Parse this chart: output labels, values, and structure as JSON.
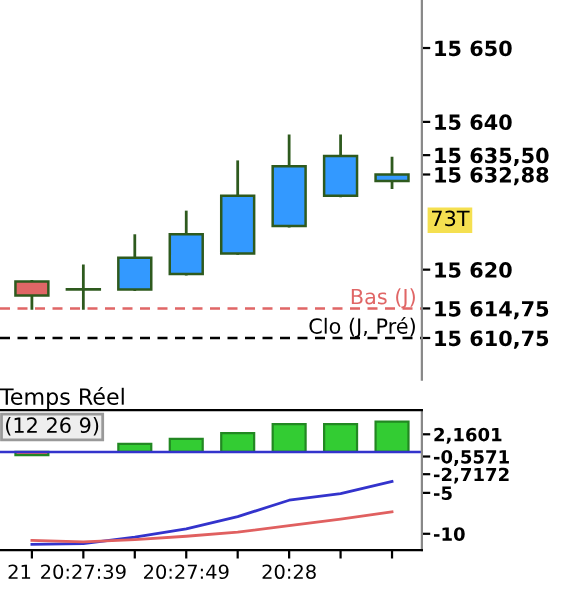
{
  "chart_data": [
    {
      "type": "candlestick",
      "categories": [
        null,
        null,
        null,
        null,
        null,
        null,
        null,
        null
      ],
      "ohlc": [
        [
          15618.4,
          15618.4,
          15614.75,
          15616.5
        ],
        [
          15617.3,
          15620.5,
          15614.75,
          15617.3
        ],
        [
          15617.3,
          15624.6,
          15617.3,
          15621.6
        ],
        [
          15619.4,
          15627.8,
          15619.4,
          15624.8
        ],
        [
          15622.2,
          15634.6,
          15622.2,
          15630.0
        ],
        [
          15625.9,
          15638.1,
          15625.9,
          15634.0
        ],
        [
          15630.0,
          15638.1,
          15630.0,
          15635.4
        ],
        [
          15632.0,
          15635.1,
          15631.1,
          15632.88
        ]
      ],
      "colors": [
        "#e06666",
        "#3399ff",
        "#3399ff",
        "#3399ff",
        "#3399ff",
        "#3399ff",
        "#3399ff",
        "#3399ff"
      ],
      "ylim": [
        15605.1,
        15656.5
      ],
      "yticks": [
        {
          "value": 15620,
          "label": "15 620"
        },
        {
          "value": 15640,
          "label": "15 640"
        },
        {
          "value": 15650,
          "label": "15 650"
        },
        {
          "value": 15614.75,
          "label": "15 614,75"
        },
        {
          "value": 15610.75,
          "label": "15 610,75"
        },
        {
          "value": 15632.88,
          "label": "15 632,88"
        },
        {
          "value": 15635.5,
          "label": "15 635,50"
        }
      ],
      "ref_lines": [
        {
          "axis": "y",
          "value": 15614.75,
          "label": "Bas (J)",
          "color": "#e06666",
          "line_style": "dashed"
        },
        {
          "axis": "y",
          "value": 15610.75,
          "label": "Clo (J, Pré)",
          "color": "#000000",
          "line_style": "dashed"
        }
      ],
      "annotations": [
        "73T"
      ],
      "tick_labels": "y"
    },
    {
      "type": "bar",
      "title": "Temps Réel",
      "categories": [
        "21",
        "20:27:39",
        null,
        "20:27:49",
        null,
        "20:28",
        null,
        null
      ],
      "series": [
        {
          "type": "bar",
          "colors": [
            "#e06666",
            "#33cc33",
            "#33cc33",
            "#33cc33",
            "#33cc33",
            "#33cc33",
            "#33cc33",
            "#33cc33"
          ],
          "values": [
            -0.4,
            null,
            1.0,
            1.6,
            2.3,
            3.4,
            3.4,
            3.7
          ]
        },
        {
          "type": "line",
          "color": "#3333cc",
          "values": [
            -11.3,
            -11.2,
            -10.4,
            -9.4,
            -7.9,
            -5.9,
            -5.1,
            -3.6
          ]
        },
        {
          "type": "line",
          "color": "#e06060",
          "values": [
            -10.8,
            -11.0,
            -10.7,
            -10.3,
            -9.8,
            -9.0,
            -8.2,
            -7.3
          ]
        }
      ],
      "ylim": [
        -12,
        5.1
      ],
      "yticks": [
        {
          "value": -10,
          "label": "-10"
        },
        {
          "value": -5,
          "label": "-5"
        },
        {
          "value": 2.1601,
          "label": "2,1601"
        },
        {
          "value": -0.5571,
          "label": "-0,5571"
        },
        {
          "value": -2.7172,
          "label": "-2,7172"
        }
      ],
      "ref_lines": [
        {
          "axis": "y",
          "value": 0,
          "color": "#3333cc",
          "line_style": "solid"
        }
      ],
      "annotations": [
        "(12 26 9)"
      ]
    }
  ]
}
